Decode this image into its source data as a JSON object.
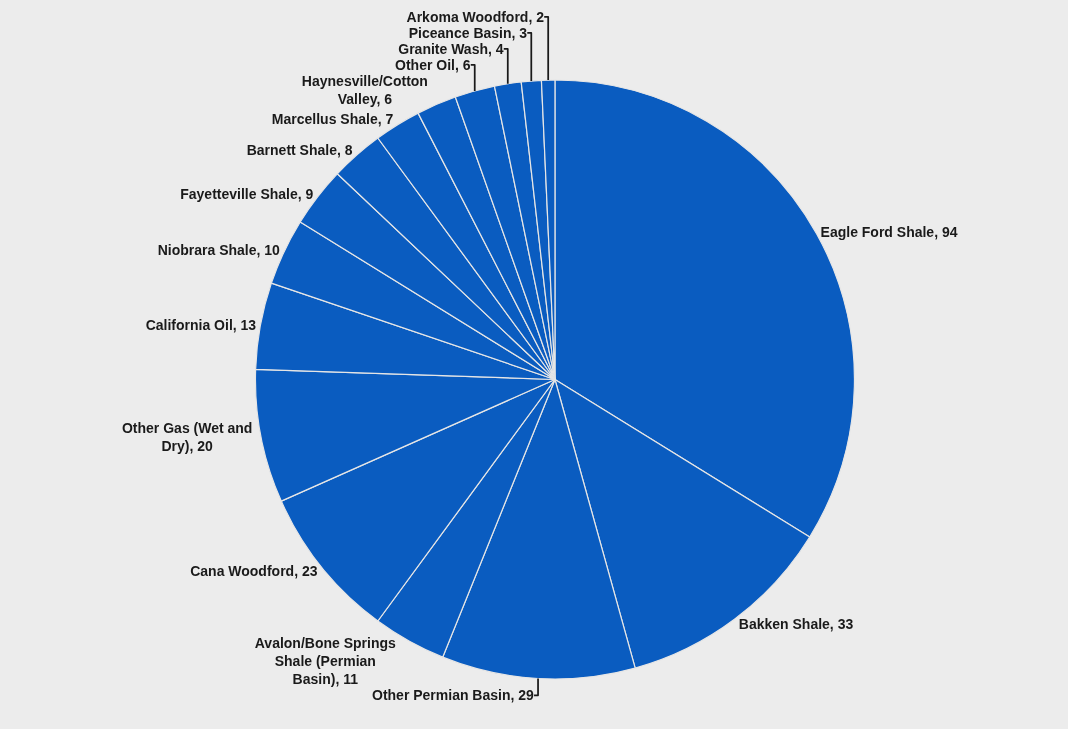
{
  "chart_data": {
    "type": "pie",
    "categories": [
      "Eagle Ford Shale",
      "Bakken Shale",
      "Other Permian Basin",
      "Avalon/Bone Springs Shale (Permian Basin)",
      "Cana Woodford",
      "Other Gas (Wet and Dry)",
      "California Oil",
      "Niobrara Shale",
      "Fayetteville Shale",
      "Barnett Shale",
      "Marcellus Shale",
      "Haynesville/Cotton Valley",
      "Other Oil",
      "Granite Wash",
      "Piceance Basin",
      "Arkoma Woodford"
    ],
    "values": [
      94,
      33,
      29,
      11,
      23,
      20,
      13,
      10,
      9,
      8,
      7,
      6,
      6,
      4,
      3,
      2
    ],
    "colors": [
      "#0a5cc0",
      "#0a5cc0",
      "#0a5cc0",
      "#0a5cc0",
      "#0a5cc0",
      "#0a5cc0",
      "#0a5cc0",
      "#0a5cc0",
      "#0a5cc0",
      "#0a5cc0",
      "#0a5cc0",
      "#0a5cc0",
      "#0a5cc0",
      "#0a5cc0",
      "#0a5cc0",
      "#0a5cc0"
    ],
    "value_labels": [
      ", 94",
      ", 33",
      ", 29",
      ", 11",
      ", 23",
      ", 20",
      ", 13",
      ", 10",
      ", 9",
      ", 8",
      ", 7",
      ", 6",
      ", 6",
      ", 4",
      ", 3",
      ", 2"
    ]
  }
}
